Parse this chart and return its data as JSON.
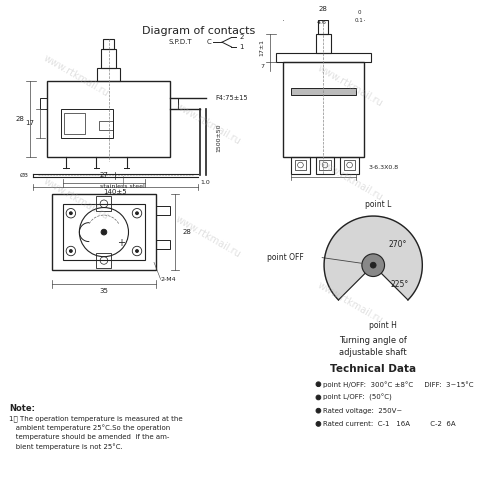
{
  "title": "Diagram of contacts",
  "bg_color": "#ffffff",
  "line_color": "#222222",
  "watermark": "www.rtkmail.ru",
  "technical_data_title": "Technical Data",
  "turning_angle_title": "Turning angle of\nadjustable shaft",
  "note_title": "Note:",
  "note_text": "1、 The operation temperature is measured at the\n   ambient temperature 25°C.So the operation\n   temperature should be amended  if the am-\n   bient temperature is not 25°C.",
  "tech_data": [
    "point H/OFF:  300°C ±8°C     DIFF:  3~15°C",
    "point L/OFF:  (50°C)",
    "Rated voltage:  250V~",
    "Rated current:  C-1   16A         C-2  6A"
  ]
}
